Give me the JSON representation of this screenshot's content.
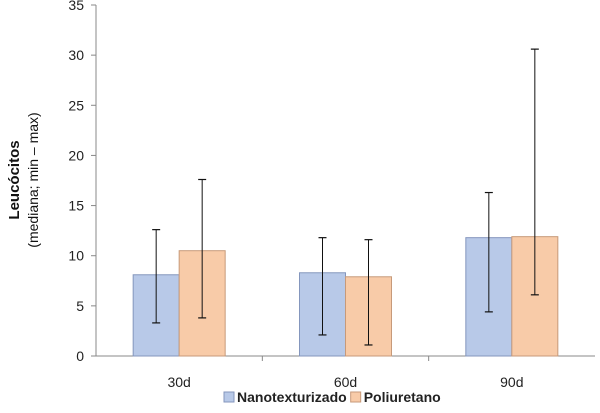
{
  "chart_data": {
    "type": "bar",
    "ylabel_main": "Leucócitos",
    "ylabel_sub": "(mediana;  min – max)",
    "xlabel": "",
    "categories": [
      "30d",
      "60d",
      "90d"
    ],
    "ylim": [
      0,
      35
    ],
    "yticks": [
      0,
      5,
      10,
      15,
      20,
      25,
      30,
      35
    ],
    "ytick_labels": [
      "0",
      "5",
      "10",
      "15",
      "20",
      "25",
      "30",
      "35"
    ],
    "grid": false,
    "legend_position": "bottom",
    "series": [
      {
        "name": "Nanotexturizado",
        "color": "#b8c9e8",
        "edge": "#8496bd",
        "values": [
          8.1,
          8.3,
          11.8
        ],
        "err_min": [
          3.3,
          2.1,
          4.4
        ],
        "err_max": [
          12.6,
          11.8,
          16.3
        ]
      },
      {
        "name": "Poliuretano",
        "color": "#f8cba8",
        "edge": "#c79a7a",
        "values": [
          10.5,
          7.9,
          11.9
        ],
        "err_min": [
          3.8,
          1.1,
          6.1
        ],
        "err_max": [
          17.6,
          11.6,
          30.6
        ]
      }
    ]
  }
}
